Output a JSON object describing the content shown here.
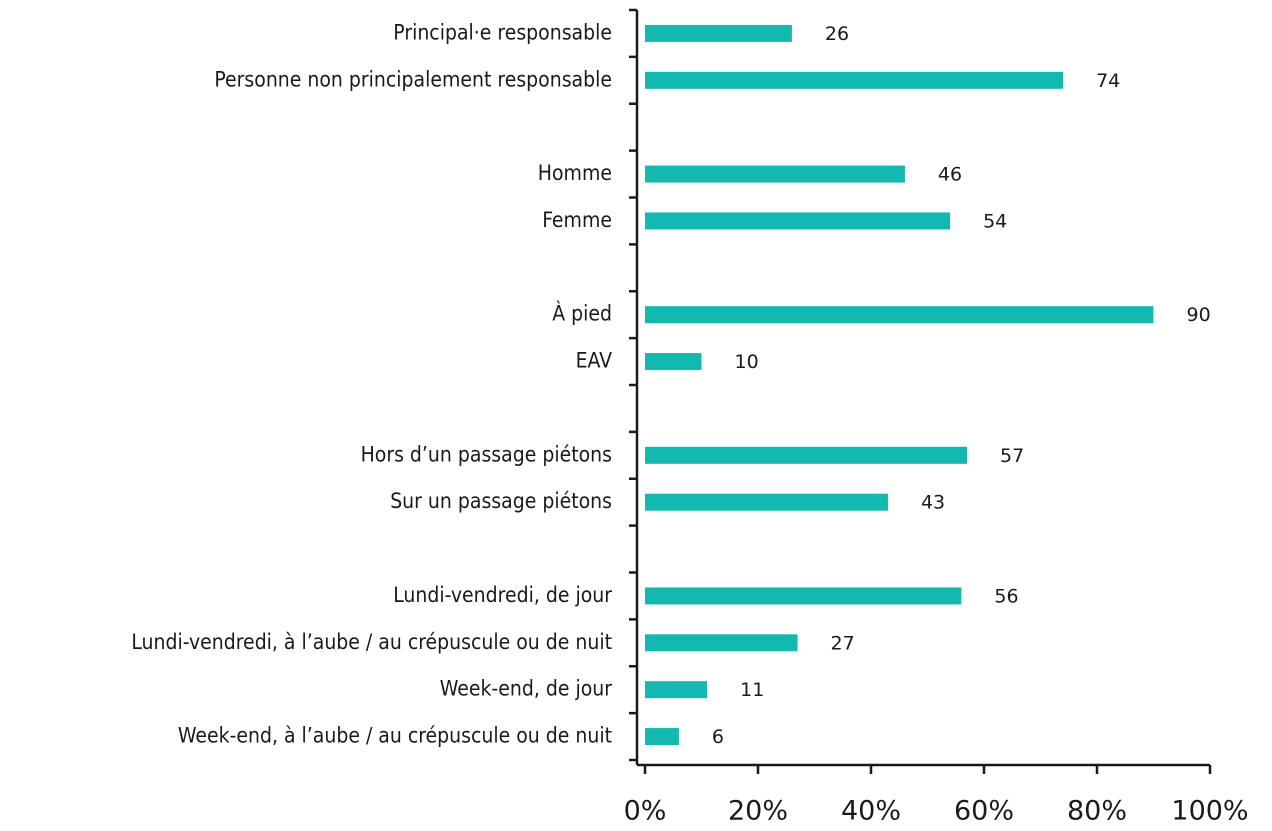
{
  "chart_data": {
    "type": "bar",
    "orientation": "horizontal",
    "categories": [
      "Principal·e responsable",
      "Personne non principalement responsable",
      null,
      "Homme",
      "Femme",
      null,
      "À pied",
      "EAV",
      null,
      "Hors d’un passage piétons",
      "Sur un passage piétons",
      null,
      "Lundi-vendredi, de jour",
      "Lundi-vendredi, à l’aube / au crépuscule ou de nuit",
      "Week-end, de jour",
      "Week-end, à l’aube / au crépuscule ou de nuit"
    ],
    "values": [
      26,
      74,
      null,
      46,
      54,
      null,
      90,
      10,
      null,
      57,
      43,
      null,
      56,
      27,
      11,
      6
    ],
    "color": "#13b8b0",
    "xlim": [
      0,
      100
    ],
    "xticks": [
      {
        "value": 0,
        "label": "0%"
      },
      {
        "value": 20,
        "label": "20%"
      },
      {
        "value": 40,
        "label": "40%"
      },
      {
        "value": 60,
        "label": "60%"
      },
      {
        "value": 80,
        "label": "80%"
      },
      {
        "value": 100,
        "label": "100%"
      }
    ]
  }
}
